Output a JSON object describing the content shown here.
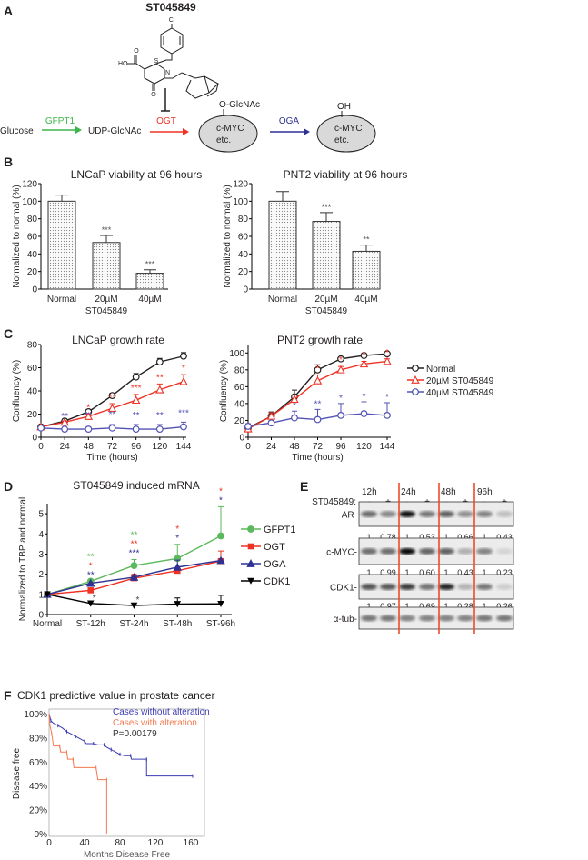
{
  "panel_labels": {
    "a": "A",
    "b": "B",
    "c": "C",
    "d": "D",
    "e": "E",
    "f": "F"
  },
  "colors": {
    "green": "#3cb54a",
    "red": "#ee3224",
    "blue": "#2e3192",
    "orange": "#f26b4a",
    "dark": "#231f20",
    "ellipse_fill": "#d9d9d9",
    "km_blue": "#3b3bb3",
    "km_red": "#f47a50"
  },
  "panel_a": {
    "compound": "ST045849",
    "structure_atoms": {
      "cl": "Cl",
      "ho": "HO",
      "o_acid": "O",
      "s": "S",
      "n": "N",
      "o_keto": "O"
    },
    "glucose": "Glucose",
    "gfpt1": "GFPT1",
    "udp": "UDP-GlcNAc",
    "ogt": "OGT",
    "oga": "OGA",
    "o_glcnac": "O-GlcNAc",
    "oh": "OH",
    "substrate_line1": "c-MYC",
    "substrate_line2": "etc."
  },
  "chart_data": [
    {
      "id": "b-lncap",
      "type": "bar",
      "title": "LNCaP viability at 96 hours",
      "ylabel": "Normalized to normal (%)",
      "categories": [
        "Normal",
        "20µM",
        "40µM"
      ],
      "category_sublabel": "ST045849",
      "values": [
        100,
        53,
        18
      ],
      "errors": [
        7,
        8,
        4
      ],
      "significance": [
        "",
        "***",
        "***"
      ],
      "ylim": [
        0,
        120
      ],
      "yticks": [
        0,
        20,
        40,
        60,
        80,
        100,
        120
      ]
    },
    {
      "id": "b-pnt2",
      "type": "bar",
      "title": "PNT2 viability at 96 hours",
      "ylabel": "Normalized to normal (%)",
      "categories": [
        "Normal",
        "20µM",
        "40µM"
      ],
      "category_sublabel": "ST045849",
      "values": [
        100,
        77,
        43
      ],
      "errors": [
        11,
        10,
        7
      ],
      "significance": [
        "",
        "***",
        "**"
      ],
      "ylim": [
        0,
        120
      ],
      "yticks": [
        0,
        20,
        40,
        60,
        80,
        100,
        120
      ]
    },
    {
      "id": "c-lncap",
      "type": "line",
      "title": "LNCaP growth rate",
      "xlabel": "Time (hours)",
      "ylabel": "Confluency (%)",
      "x": [
        0,
        24,
        48,
        72,
        96,
        120,
        144
      ],
      "xlim": [
        0,
        144
      ],
      "ylim": [
        0,
        80
      ],
      "yticks": [
        0,
        20,
        40,
        60,
        80
      ],
      "series": [
        {
          "name": "Normal",
          "marker": "circle",
          "color": "#231f20",
          "values": [
            9,
            14,
            22,
            36,
            52,
            65,
            70
          ],
          "errors": [
            1,
            1,
            2,
            2,
            3,
            3,
            3
          ]
        },
        {
          "name": "20µM ST045849",
          "marker": "triangle",
          "color": "#ee3224",
          "values": [
            9,
            13,
            18,
            25,
            32,
            41,
            48
          ],
          "errors": [
            1,
            1,
            2,
            4,
            5,
            5,
            6
          ],
          "significance": [
            "",
            "",
            "*",
            "**",
            "***",
            "**",
            "*"
          ]
        },
        {
          "name": "40µM ST045849",
          "marker": "circle",
          "color": "#5252b5",
          "values": [
            8,
            7,
            7,
            8,
            7,
            7,
            9
          ],
          "errors": [
            1,
            1,
            2,
            3,
            4,
            4,
            4
          ],
          "significance": [
            "",
            "**",
            "**",
            "**",
            "**",
            "**",
            "***"
          ]
        }
      ]
    },
    {
      "id": "c-pnt2",
      "type": "line",
      "title": "PNT2 growth rate",
      "xlabel": "Time (hours)",
      "ylabel": "Confluency (%)",
      "x": [
        0,
        24,
        48,
        72,
        96,
        120,
        144
      ],
      "xlim": [
        0,
        144
      ],
      "ylim": [
        0,
        110
      ],
      "yticks": [
        0,
        20,
        40,
        60,
        80,
        100
      ],
      "legend": "right",
      "series": [
        {
          "name": "Normal",
          "marker": "circle",
          "color": "#231f20",
          "values": [
            11,
            25,
            48,
            80,
            93,
            97,
            99
          ],
          "errors": [
            2,
            5,
            8,
            6,
            2,
            2,
            1
          ]
        },
        {
          "name": "20µM ST045849",
          "marker": "triangle",
          "color": "#ee3224",
          "values": [
            10,
            25,
            45,
            67,
            80,
            87,
            90
          ],
          "errors": [
            2,
            4,
            5,
            7,
            4,
            3,
            3
          ],
          "significance": [
            "",
            "",
            "",
            "*",
            "*",
            "*",
            "*"
          ]
        },
        {
          "name": "40µM ST045849",
          "marker": "circle",
          "color": "#5252b5",
          "values": [
            13,
            17,
            23,
            21,
            26,
            28,
            26
          ],
          "errors": [
            3,
            3,
            8,
            12,
            14,
            14,
            15
          ],
          "significance": [
            "",
            "",
            "*",
            "**",
            "*",
            "*",
            "*"
          ]
        }
      ]
    },
    {
      "id": "d-mrna",
      "type": "line",
      "title": "ST045849 induced mRNA",
      "ylabel": "Normalized to TBP and normal",
      "categories": [
        "Normal",
        "ST-12h",
        "ST-24h",
        "ST-48h",
        "ST-96h"
      ],
      "ylim": [
        0,
        5.5
      ],
      "yticks": [
        0,
        1,
        2,
        3,
        4,
        5
      ],
      "legend": "right",
      "series": [
        {
          "name": "GFPT1",
          "marker": "circle",
          "color": "#5cb85c",
          "values": [
            1,
            1.65,
            2.43,
            2.78,
            3.9
          ],
          "errors": [
            0,
            0,
            0.3,
            0.7,
            1.45
          ]
        },
        {
          "name": "OGT",
          "marker": "square",
          "color": "#ee3224",
          "values": [
            1,
            1.2,
            1.8,
            2.17,
            2.65
          ],
          "errors": [
            0,
            0,
            0.2,
            0,
            0.5
          ]
        },
        {
          "name": "OGA",
          "marker": "triangle",
          "color": "#2e3192",
          "values": [
            1,
            1.55,
            1.85,
            2.35,
            2.68
          ],
          "errors": [
            0,
            0,
            0.1,
            0.35,
            0
          ]
        },
        {
          "name": "CDK1",
          "marker": "triangle-down",
          "color": "#000000",
          "values": [
            1,
            0.55,
            0.45,
            0.52,
            0.53
          ],
          "errors": [
            0,
            0,
            0,
            0.3,
            0.42
          ]
        }
      ],
      "significance": [
        {
          "category": "ST-12h",
          "marks": [
            {
              "text": "**",
              "series": "GFPT1"
            },
            {
              "text": "*",
              "series": "OGT"
            },
            {
              "text": "**",
              "series": "OGA"
            },
            {
              "text": "*",
              "series": "CDK1"
            }
          ]
        },
        {
          "category": "ST-24h",
          "marks": [
            {
              "text": "**",
              "series": "GFPT1"
            },
            {
              "text": "**",
              "series": "OGT"
            },
            {
              "text": "***",
              "series": "OGA"
            },
            {
              "text": "*",
              "series": "CDK1"
            }
          ]
        },
        {
          "category": "ST-48h",
          "marks": [
            {
              "text": "*",
              "series": "OGT"
            },
            {
              "text": "*",
              "series": "OGA"
            }
          ]
        },
        {
          "category": "ST-96h",
          "marks": [
            {
              "text": "*",
              "series": "OGT"
            },
            {
              "text": "*",
              "series": "OGA"
            }
          ]
        }
      ]
    },
    {
      "id": "e-blot",
      "type": "table",
      "timepoints": [
        "12h",
        "24h",
        "48h",
        "96h"
      ],
      "treatment_label": "ST045849:",
      "lanes": [
        "-",
        "+",
        "-",
        "+",
        "-",
        "+",
        "-",
        "+"
      ],
      "rows": [
        {
          "protein": "AR-",
          "quant": [
            "1",
            "0.78",
            "1",
            "0.53",
            "1",
            "0.66",
            "1",
            "0.43"
          ]
        },
        {
          "protein": "c-MYC-",
          "quant": [
            "1",
            "0.99",
            "1",
            "0.60",
            "1",
            "0.43",
            "1",
            "0.23"
          ]
        },
        {
          "protein": "CDK1-",
          "quant": [
            "1",
            "0.97",
            "1",
            "0.69",
            "1",
            "0.28",
            "1",
            "0.26"
          ]
        },
        {
          "protein": "α-tub-",
          "quant": []
        }
      ]
    },
    {
      "id": "f-km",
      "type": "line",
      "title": "CDK1 predictive value in prostate cancer",
      "xlabel": "Months Disease Free",
      "ylabel": "Disease free",
      "xlim": [
        0,
        160
      ],
      "xticks": [
        0,
        40,
        80,
        120,
        160
      ],
      "ylim": [
        0,
        100
      ],
      "yticks": [
        "0%",
        "20%",
        "40%",
        "60%",
        "80%",
        "100%"
      ],
      "annotation": "P=0.00179",
      "series": [
        {
          "name": "Cases without alteration",
          "color": "#3b3bb3",
          "x": [
            0,
            1,
            2,
            5,
            10,
            15,
            20,
            25,
            30,
            35,
            40,
            42,
            50,
            55,
            62,
            65,
            70,
            75,
            80,
            85,
            92,
            93,
            110,
            110,
            162
          ],
          "y": [
            100,
            97,
            94,
            92,
            90,
            88,
            85,
            83,
            81,
            79,
            77,
            75,
            75,
            74,
            74,
            72,
            70,
            68,
            66,
            65,
            65,
            62,
            62,
            48,
            48
          ]
        },
        {
          "name": "Cases with alteration",
          "color": "#f47a50",
          "x": [
            0,
            1,
            3,
            5,
            12,
            13,
            20,
            21,
            27,
            28,
            53,
            55,
            65,
            65
          ],
          "y": [
            100,
            90,
            83,
            73,
            73,
            68,
            68,
            62,
            62,
            55,
            55,
            45,
            45,
            0
          ]
        }
      ]
    }
  ]
}
